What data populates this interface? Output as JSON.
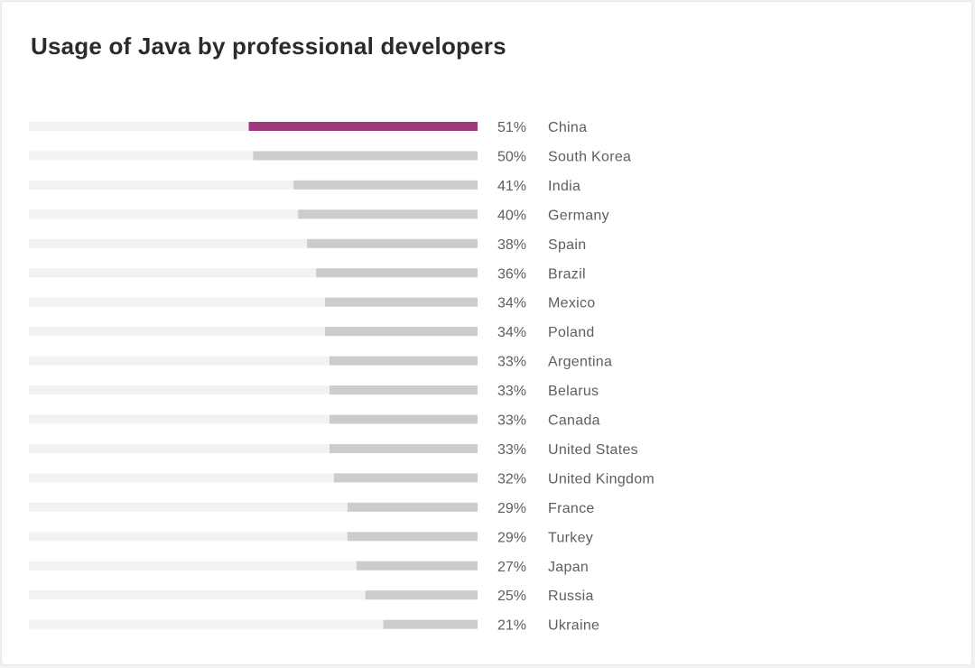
{
  "title": "Usage of Java by professional developers",
  "colors": {
    "highlight": "#a0377f",
    "bar": "#cccccc",
    "track": "#f2f2f2",
    "text": "#5e5e5e"
  },
  "chart_data": {
    "type": "bar",
    "orientation": "horizontal",
    "title": "Usage of Java by professional developers",
    "xlabel": "",
    "ylabel": "",
    "xlim": [
      0,
      100
    ],
    "value_suffix": "%",
    "highlighted_category": "China",
    "categories": [
      "China",
      "South Korea",
      "India",
      "Germany",
      "Spain",
      "Brazil",
      "Mexico",
      "Poland",
      "Argentina",
      "Belarus",
      "Canada",
      "United States",
      "United Kingdom",
      "France",
      "Turkey",
      "Japan",
      "Russia",
      "Ukraine"
    ],
    "values": [
      51,
      50,
      41,
      40,
      38,
      36,
      34,
      34,
      33,
      33,
      33,
      33,
      32,
      29,
      29,
      27,
      25,
      21
    ],
    "grid": false,
    "legend": "none"
  }
}
